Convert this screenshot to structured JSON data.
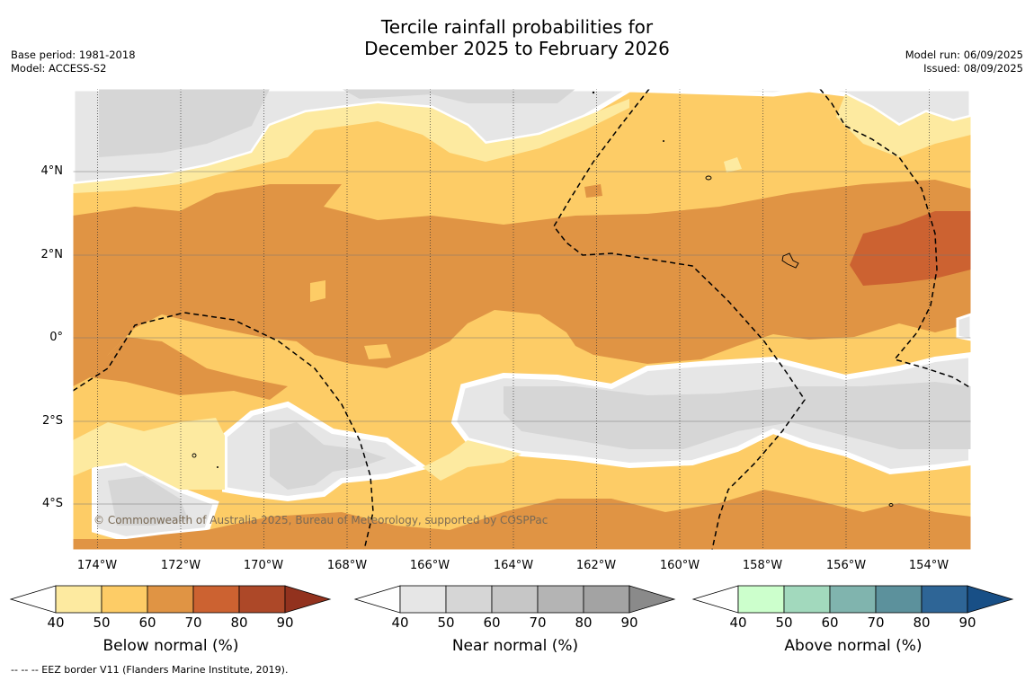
{
  "header": {
    "title_line1": "Tercile rainfall probabilities for",
    "title_line2": "December 2025 to February 2026",
    "base_period": "Base period: 1981-2018",
    "model": "Model: ACCESS-S2",
    "model_run": "Model run: 06/09/2025",
    "issued": "Issued: 08/09/2025"
  },
  "map": {
    "credit": "© Commonwealth of Australia 2025, Bureau of Meteorology, supported by COSPPac",
    "lon_labels": [
      "174°W",
      "172°W",
      "170°W",
      "168°W",
      "166°W",
      "164°W",
      "162°W",
      "160°W",
      "158°W",
      "156°W",
      "154°W"
    ],
    "lat_labels": [
      "4°N",
      "2°N",
      "0°",
      "2°S",
      "4°S"
    ],
    "colors": {
      "below": [
        "#fdeaa0",
        "#fdcc66",
        "#e09444",
        "#cc6231",
        "#ad4828",
        "#92321e"
      ],
      "near": [
        "#e6e6e6",
        "#d6d6d6",
        "#c6c6c6",
        "#b4b4b4",
        "#a3a3a3",
        "#8a8a8a"
      ],
      "above": [
        "#ccffcc",
        "#a2d9bd",
        "#80b4ae",
        "#5c919c",
        "#2e6596",
        "#184f86"
      ]
    }
  },
  "legends": [
    {
      "title": "Below normal (%)",
      "ticks": [
        "40",
        "50",
        "60",
        "70",
        "80",
        "90"
      ]
    },
    {
      "title": "Near normal (%)",
      "ticks": [
        "40",
        "50",
        "60",
        "70",
        "80",
        "90"
      ]
    },
    {
      "title": "Above normal (%)",
      "ticks": [
        "40",
        "50",
        "60",
        "70",
        "80",
        "90"
      ]
    }
  ],
  "footer": "--  --  -- EEZ border V11 (Flanders Marine Institute, 2019)."
}
